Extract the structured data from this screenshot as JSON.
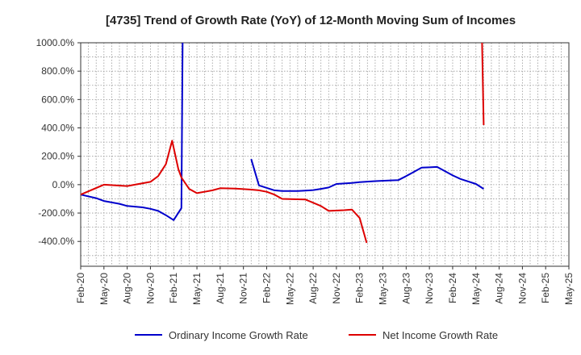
{
  "chart_data": {
    "type": "line",
    "title": "[4735]  Trend of Growth Rate (YoY) of 12-Month Moving Sum of Incomes",
    "xlabel": "",
    "ylabel": "",
    "ylim": [
      -575,
      1000
    ],
    "y_ticks": [
      -400,
      -200,
      0,
      200,
      400,
      600,
      800,
      1000
    ],
    "y_tick_labels": [
      "-400.0%",
      "-200.0%",
      "0.0%",
      "200.0%",
      "400.0%",
      "600.0%",
      "800.0%",
      "1000.0%"
    ],
    "x_tick_labels": [
      "Feb-20",
      "May-20",
      "Aug-20",
      "Nov-20",
      "Feb-21",
      "May-21",
      "Aug-21",
      "Nov-21",
      "Feb-22",
      "May-22",
      "Aug-22",
      "Nov-22",
      "Feb-23",
      "May-23",
      "Aug-23",
      "Nov-23",
      "Feb-24",
      "May-24",
      "Aug-24",
      "Nov-24",
      "Feb-25",
      "May-25"
    ],
    "x_range_months": [
      0,
      63
    ],
    "grid": true,
    "legend_position": "bottom",
    "series": [
      {
        "name": "Ordinary Income Growth Rate",
        "color": "#0000cc",
        "segments": [
          [
            [
              0,
              -70
            ],
            [
              2,
              -95
            ],
            [
              3,
              -115
            ],
            [
              5,
              -135
            ],
            [
              6,
              -150
            ],
            [
              8,
              -160
            ],
            [
              9,
              -170
            ],
            [
              10,
              -185
            ],
            [
              11,
              -215
            ],
            [
              12,
              -250
            ],
            [
              13,
              -165
            ],
            [
              13.15,
              1000
            ]
          ],
          [
            [
              22,
              180
            ],
            [
              23,
              -5
            ],
            [
              25,
              -40
            ],
            [
              26,
              -45
            ],
            [
              28,
              -45
            ],
            [
              29,
              -42
            ],
            [
              30,
              -38
            ],
            [
              31,
              -30
            ],
            [
              32,
              -20
            ],
            [
              33,
              5
            ],
            [
              35,
              12
            ],
            [
              36,
              18
            ],
            [
              38,
              25
            ],
            [
              40,
              30
            ],
            [
              41,
              32
            ],
            [
              42,
              60
            ],
            [
              44,
              120
            ],
            [
              45,
              122
            ],
            [
              46,
              125
            ],
            [
              48,
              65
            ],
            [
              49,
              40
            ],
            [
              51,
              5
            ],
            [
              52,
              -30
            ]
          ]
        ]
      },
      {
        "name": "Net Income Growth Rate",
        "color": "#dd0000",
        "segments": [
          [
            [
              0,
              -70
            ],
            [
              3,
              0
            ],
            [
              6,
              -10
            ],
            [
              8,
              10
            ],
            [
              9,
              20
            ],
            [
              10,
              60
            ],
            [
              11,
              145
            ],
            [
              11.8,
              310
            ],
            [
              12.6,
              110
            ],
            [
              13,
              50
            ],
            [
              14,
              -30
            ],
            [
              15,
              -60
            ],
            [
              17,
              -40
            ],
            [
              18,
              -25
            ],
            [
              20,
              -28
            ],
            [
              22,
              -35
            ],
            [
              23,
              -40
            ],
            [
              24,
              -50
            ],
            [
              25,
              -70
            ],
            [
              26,
              -100
            ],
            [
              28,
              -103
            ],
            [
              29,
              -105
            ],
            [
              31,
              -150
            ],
            [
              32,
              -185
            ],
            [
              34,
              -180
            ],
            [
              35,
              -175
            ],
            [
              36,
              -235
            ],
            [
              36.9,
              -410
            ]
          ],
          [
            [
              51.8,
              1000
            ],
            [
              52,
              420
            ]
          ]
        ]
      }
    ]
  }
}
